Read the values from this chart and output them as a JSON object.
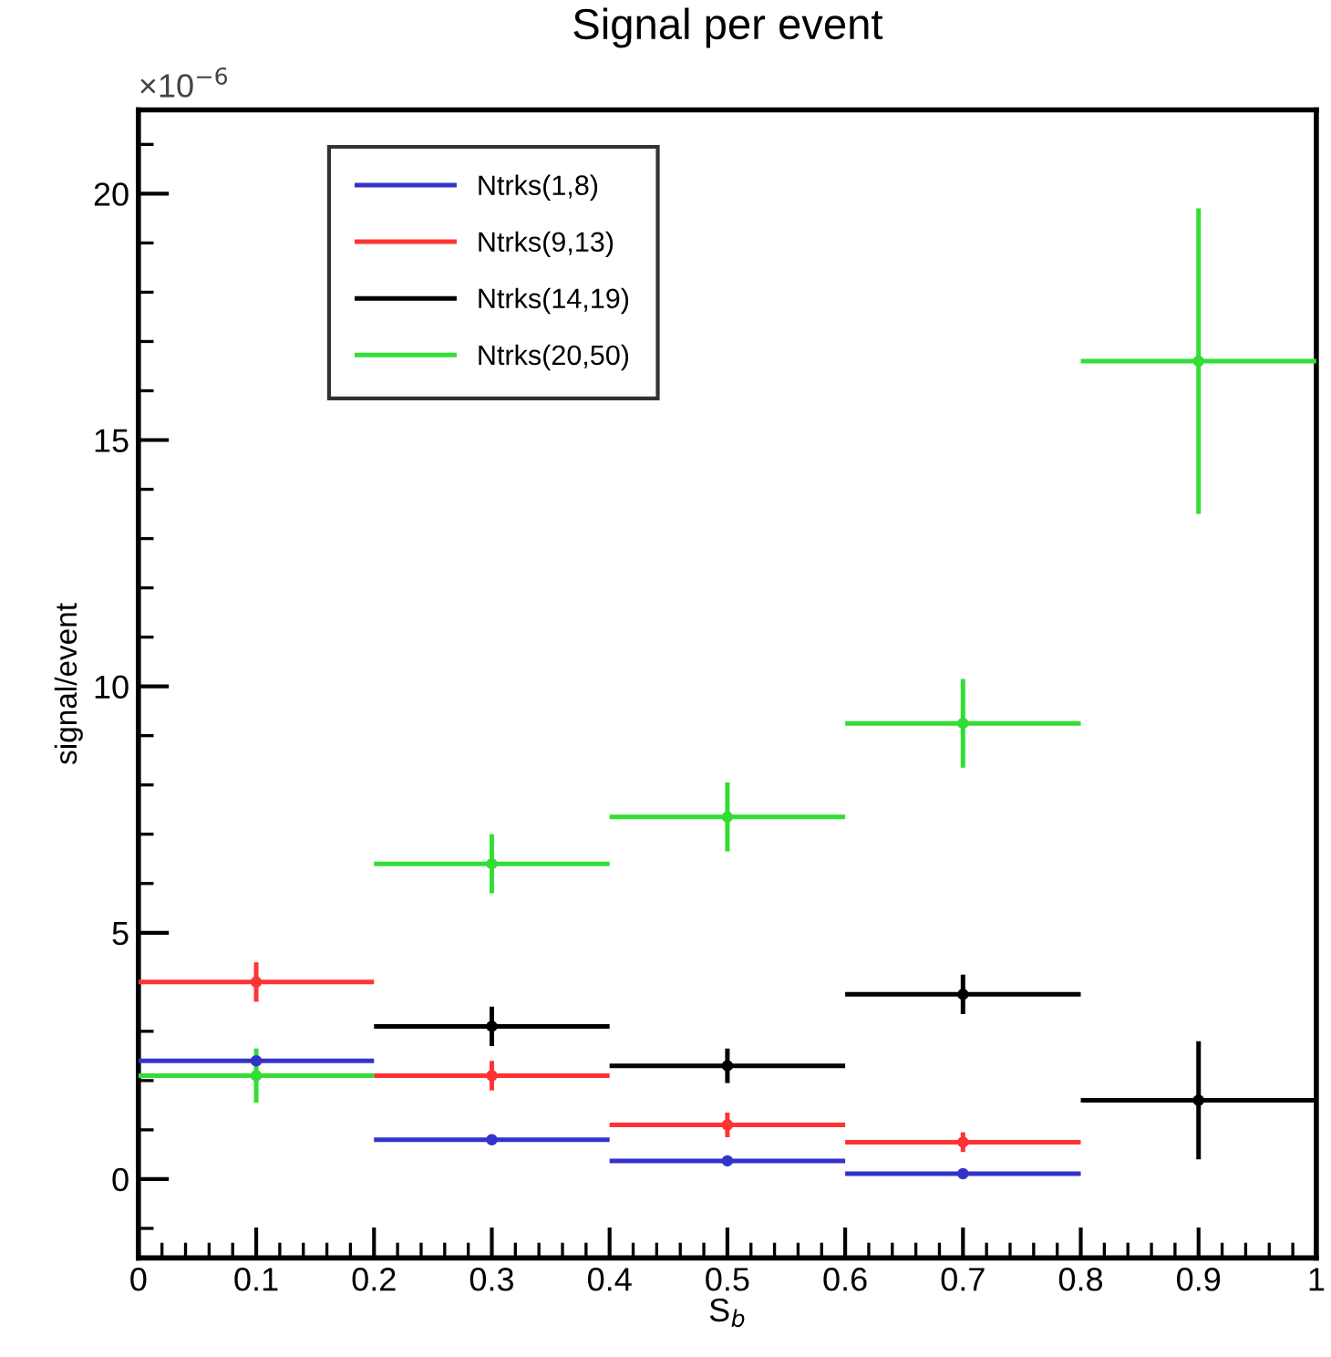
{
  "chart_data": {
    "type": "scatter",
    "title": "Signal per event",
    "xlabel": "S$_{b}$",
    "ylabel": "signal/event",
    "annotations": [
      "×10$^{−6}$"
    ],
    "x": [
      0.1,
      0.3,
      0.5,
      0.7,
      0.9
    ],
    "series": [
      {
        "name": "Ntrks(1,8)",
        "color": "#3333cc",
        "values": [
          2.4,
          0.8,
          0.37,
          0.11,
          null
        ],
        "errors": [
          null,
          0.1,
          0.05,
          0.05,
          null
        ],
        "xerrors": [
          0.1,
          0.1,
          0.1,
          0.1,
          null
        ]
      },
      {
        "name": "Ntrks(9,13)",
        "color": "#ff3333",
        "values": [
          4.0,
          2.1,
          1.1,
          0.75,
          null
        ],
        "errors": [
          0.4,
          0.3,
          0.25,
          0.2,
          null
        ],
        "xerrors": [
          0.1,
          0.1,
          0.1,
          0.1,
          null
        ]
      },
      {
        "name": "Ntrks(14,19)",
        "color": "#000000",
        "values": [
          null,
          3.1,
          2.3,
          3.75,
          1.6
        ],
        "errors": [
          null,
          0.4,
          0.35,
          0.4,
          1.2
        ],
        "xerrors": [
          null,
          0.1,
          0.1,
          0.1,
          0.1
        ]
      },
      {
        "name": "Ntrks(20,50)",
        "color": "#33dd33",
        "values": [
          2.1,
          6.4,
          7.35,
          9.25,
          16.6
        ],
        "errors": [
          0.55,
          0.6,
          0.7,
          0.9,
          3.1
        ],
        "xerrors": [
          0.1,
          0.1,
          0.1,
          0.1,
          0.1
        ]
      }
    ],
    "marker": "circle",
    "xlim": [
      0,
      1
    ],
    "xticks": [
      0,
      0.1,
      0.2,
      0.3,
      0.4,
      0.5,
      0.6,
      0.7,
      0.8,
      0.9,
      1
    ],
    "ylim": [
      -1.6,
      21.7
    ],
    "yticks": [
      0,
      5,
      10,
      15,
      20
    ],
    "grid": false,
    "legend": "top left"
  }
}
